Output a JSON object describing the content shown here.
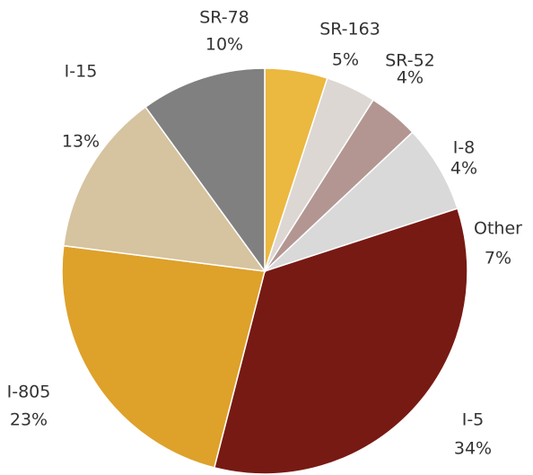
{
  "chart_data": {
    "type": "pie",
    "categories": [
      "SR-163",
      "SR-52",
      "I-8",
      "Other",
      "I-5",
      "I-805",
      "I-15",
      "SR-78"
    ],
    "values": [
      5,
      4,
      4,
      7,
      34,
      23,
      13,
      10
    ],
    "value_labels": [
      "5%",
      "4%",
      "4%",
      "7%",
      "34%",
      "23%",
      "13%",
      "10%"
    ],
    "colors": [
      "#ebb840",
      "#dcd7d3",
      "#b39692",
      "#d9d9d9",
      "#771a13",
      "#dea12a",
      "#d6c39f",
      "#808080"
    ]
  }
}
